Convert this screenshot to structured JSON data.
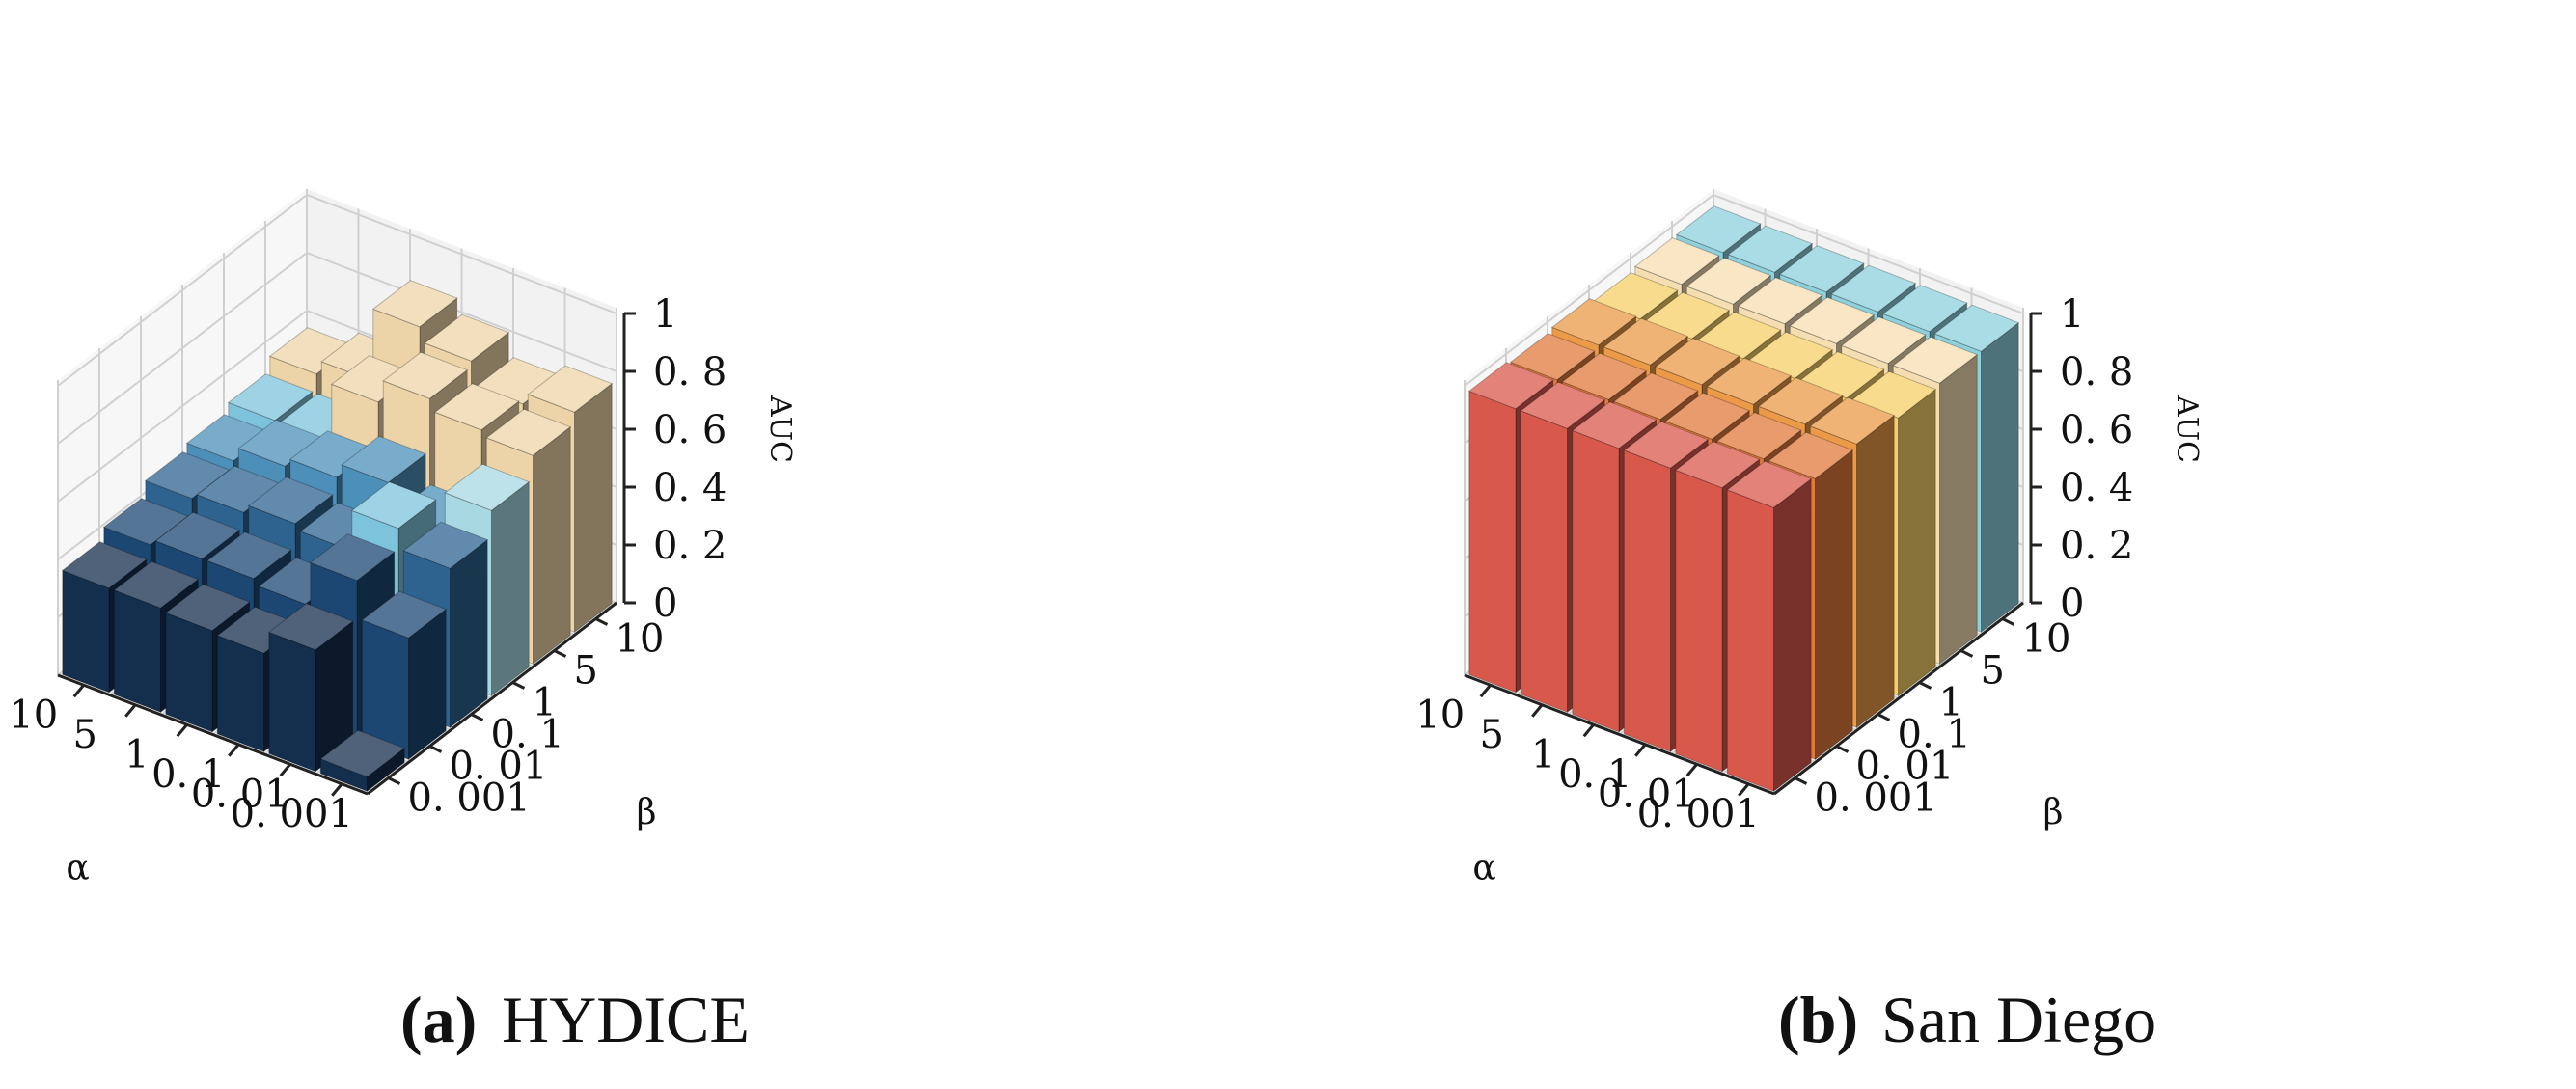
{
  "chart_data": [
    {
      "type": "bar3d",
      "title": "HYDICE",
      "caption_letter": "(a)",
      "xlabel": "α",
      "ylabel": "β",
      "zlabel": "AUC",
      "alpha_ticks": [
        "10",
        "5",
        "1",
        "0. 1",
        "0. 01",
        "0. 001"
      ],
      "beta_ticks": [
        "0. 001",
        "0. 01",
        "0. 1",
        "1",
        "5",
        "10"
      ],
      "z_ticks": [
        "0",
        "0. 2",
        "0. 4",
        "0. 6",
        "0. 8",
        "1"
      ],
      "zlim": [
        0,
        1
      ],
      "colors": [
        "#142e4e",
        "#1c4773",
        "#2e6390",
        "#4c8fb8",
        "#7dc3dc",
        "#a8d8e2",
        "#ecd4a8"
      ],
      "values": [
        [
          0.36,
          0.4,
          0.45,
          0.47,
          0.5,
          0.55
        ],
        [
          0.36,
          0.42,
          0.47,
          0.52,
          0.5,
          0.6
        ],
        [
          0.35,
          0.42,
          0.5,
          0.55,
          0.7,
          0.85
        ],
        [
          0.34,
          0.4,
          0.48,
          0.6,
          0.78,
          0.8
        ],
        [
          0.42,
          0.55,
          0.62,
          0.5,
          0.74,
          0.72
        ],
        [
          0.05,
          0.42,
          0.55,
          0.64,
          0.72,
          0.76
        ]
      ]
    },
    {
      "type": "bar3d",
      "title": "San Diego",
      "caption_letter": "(b)",
      "xlabel": "α",
      "ylabel": "β",
      "zlabel": "AUC",
      "alpha_ticks": [
        "10",
        "5",
        "1",
        "0. 1",
        "0. 01",
        "0. 001"
      ],
      "beta_ticks": [
        "0. 001",
        "0. 01",
        "0. 1",
        "1",
        "5",
        "10"
      ],
      "z_ticks": [
        "0",
        "0. 2",
        "0. 4",
        "0. 6",
        "0. 8",
        "1"
      ],
      "zlim": [
        0,
        1
      ],
      "colors": [
        "#d8584c",
        "#e07a3c",
        "#eb9a48",
        "#f3b84e",
        "#f6cf67",
        "#f5deb2",
        "#8ed0dc"
      ],
      "values": [
        [
          0.98,
          0.97,
          0.98,
          0.96,
          0.97,
          0.97
        ],
        [
          0.98,
          0.97,
          0.98,
          0.96,
          0.97,
          0.97
        ],
        [
          0.98,
          0.97,
          0.98,
          0.96,
          0.97,
          0.97
        ],
        [
          0.98,
          0.97,
          0.98,
          0.96,
          0.97,
          0.97
        ],
        [
          0.98,
          0.97,
          0.98,
          0.96,
          0.97,
          0.97
        ],
        [
          0.98,
          0.97,
          0.98,
          0.96,
          0.97,
          0.97
        ]
      ]
    }
  ]
}
